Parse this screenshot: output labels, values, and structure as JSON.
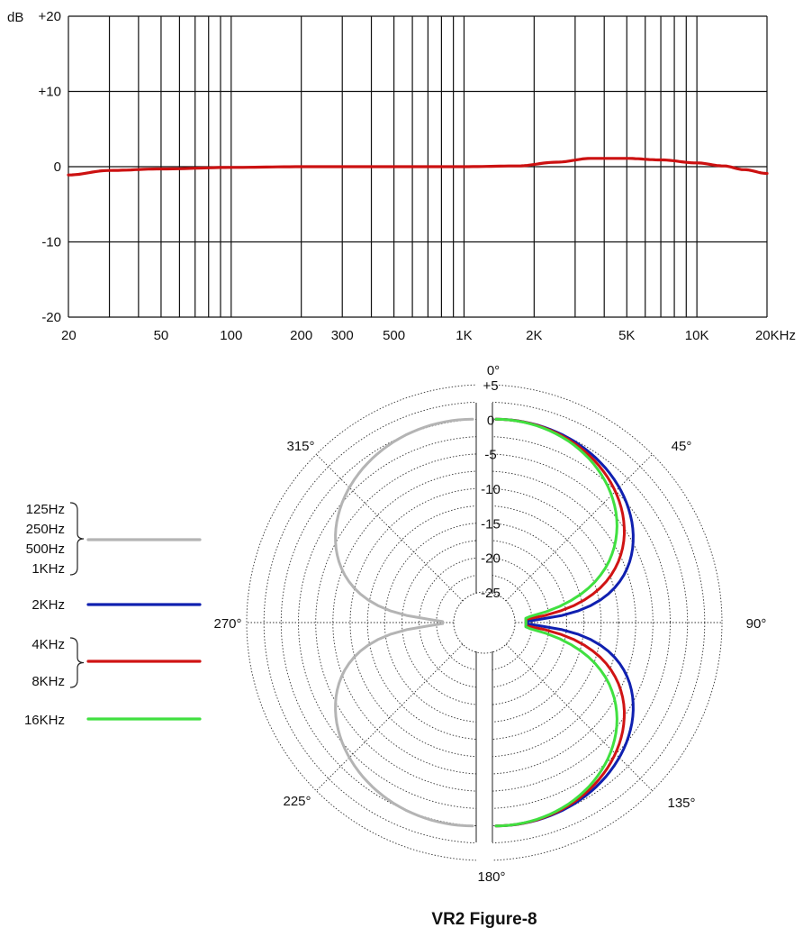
{
  "chart_data": [
    {
      "type": "line",
      "title": "",
      "xlabel": "",
      "ylabel": "dB",
      "x_scale": "log",
      "xlim": [
        20,
        20000
      ],
      "ylim": [
        -20,
        20
      ],
      "grid": true,
      "y_ticks": [
        {
          "value": 20,
          "label": "+20"
        },
        {
          "value": 10,
          "label": "+10"
        },
        {
          "value": 0,
          "label": "0"
        },
        {
          "value": -10,
          "label": "-10"
        },
        {
          "value": -20,
          "label": "-20"
        }
      ],
      "x_ticks": [
        {
          "value": 20,
          "label": "20"
        },
        {
          "value": 50,
          "label": "50"
        },
        {
          "value": 100,
          "label": "100"
        },
        {
          "value": 200,
          "label": "200"
        },
        {
          "value": 300,
          "label": "300"
        },
        {
          "value": 500,
          "label": "500"
        },
        {
          "value": 1000,
          "label": "1K"
        },
        {
          "value": 2000,
          "label": "2K"
        },
        {
          "value": 5000,
          "label": "5K"
        },
        {
          "value": 10000,
          "label": "10K"
        },
        {
          "value": 20000,
          "label": "20KHz"
        }
      ],
      "grid_x": [
        20,
        30,
        40,
        50,
        60,
        70,
        80,
        90,
        100,
        200,
        300,
        400,
        500,
        600,
        700,
        800,
        900,
        1000,
        2000,
        3000,
        4000,
        5000,
        6000,
        7000,
        8000,
        9000,
        10000,
        20000
      ],
      "series": [
        {
          "color": "#cc1111",
          "x": [
            20,
            30,
            50,
            100,
            200,
            500,
            1000,
            1700,
            2500,
            3500,
            5000,
            7000,
            10000,
            13000,
            16000,
            20000
          ],
          "y": [
            -1.1,
            -0.5,
            -0.3,
            -0.1,
            0,
            0,
            0,
            0.1,
            0.6,
            1.1,
            1.1,
            0.9,
            0.5,
            0.1,
            -0.4,
            -0.9
          ]
        }
      ]
    },
    {
      "type": "polar",
      "title": "VR2 Figure-8",
      "radial_range": [
        -25,
        5
      ],
      "radial_ticks": [
        "+5",
        "0",
        "-5",
        "-10",
        "-15",
        "-20",
        "-25"
      ],
      "radial_values": [
        5,
        0,
        -5,
        -10,
        -15,
        -20,
        -25
      ],
      "angle_labels": [
        {
          "angle": 0,
          "label": "0°"
        },
        {
          "angle": 45,
          "label": "45°"
        },
        {
          "angle": 90,
          "label": "90°"
        },
        {
          "angle": 135,
          "label": "135°"
        },
        {
          "angle": 180,
          "label": "180°"
        },
        {
          "angle": 225,
          "label": "225°"
        },
        {
          "angle": 270,
          "label": "270°"
        },
        {
          "angle": 315,
          "label": "315°"
        }
      ],
      "legend": [
        {
          "labels": [
            "125Hz",
            "250Hz",
            "500Hz",
            "1KHz"
          ],
          "color": "#b4b4b4"
        },
        {
          "labels": [
            "2KHz"
          ],
          "color": "#1020b0"
        },
        {
          "labels": [
            "4KHz",
            "8KHz"
          ],
          "color": "#d01414"
        },
        {
          "labels": [
            "16KHz"
          ],
          "color": "#40e040"
        }
      ],
      "pattern": "cos-theta figure-8; 0 dB at 0° and 180°, deep null at 90° and 270°",
      "series": [
        {
          "name": "125Hz–1KHz",
          "color": "#b4b4b4",
          "side": "left",
          "null_db": -25,
          "exponent": 1.0
        },
        {
          "name": "2KHz",
          "color": "#1020b0",
          "side": "right",
          "null_db": -25,
          "exponent": 1.0
        },
        {
          "name": "4KHz–8KHz",
          "color": "#d01414",
          "side": "right",
          "null_db": -25,
          "exponent": 1.3
        },
        {
          "name": "16KHz",
          "color": "#40e040",
          "side": "right",
          "null_db": -25,
          "exponent": 1.6
        }
      ]
    }
  ]
}
